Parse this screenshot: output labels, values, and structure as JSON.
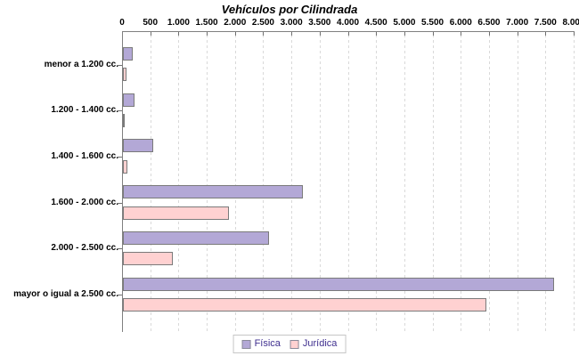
{
  "title": "Vehículos por Cilindrada",
  "chart_data": {
    "type": "bar",
    "orientation": "horizontal",
    "title": "Vehículos por Cilindrada",
    "categories": [
      "menor a 1.200 cc.",
      "1.200 - 1.400 cc.",
      "1.400 - 1.600 cc.",
      "1.600 - 2.000 cc.",
      "2.000 - 2.500 cc.",
      "mayor o igual a 2.500 cc."
    ],
    "series": [
      {
        "name": "Física",
        "color": "#b3a8d6",
        "border_color": "#7a7a7a",
        "values": [
          180,
          210,
          540,
          3180,
          2580,
          7630
        ]
      },
      {
        "name": "Jurídica",
        "color": "#ffd1d1",
        "border_color": "#7a7a7a",
        "values": [
          60,
          10,
          75,
          1880,
          890,
          6440
        ]
      }
    ],
    "xlim": [
      0,
      8000
    ],
    "xtick_step": 500,
    "xtick_labels": [
      "0",
      "500",
      "1.000",
      "1.500",
      "2.000",
      "2.500",
      "3.000",
      "3.500",
      "4.000",
      "4.500",
      "5.000",
      "5.500",
      "6.000",
      "6.500",
      "7.000",
      "7.500",
      "8.000"
    ],
    "grid": "vertical-dashed",
    "grid_color": "#d9d9d9",
    "axis_color": "#808080",
    "legend_position": "bottom",
    "legend_text_color": "#3f2f8f"
  }
}
